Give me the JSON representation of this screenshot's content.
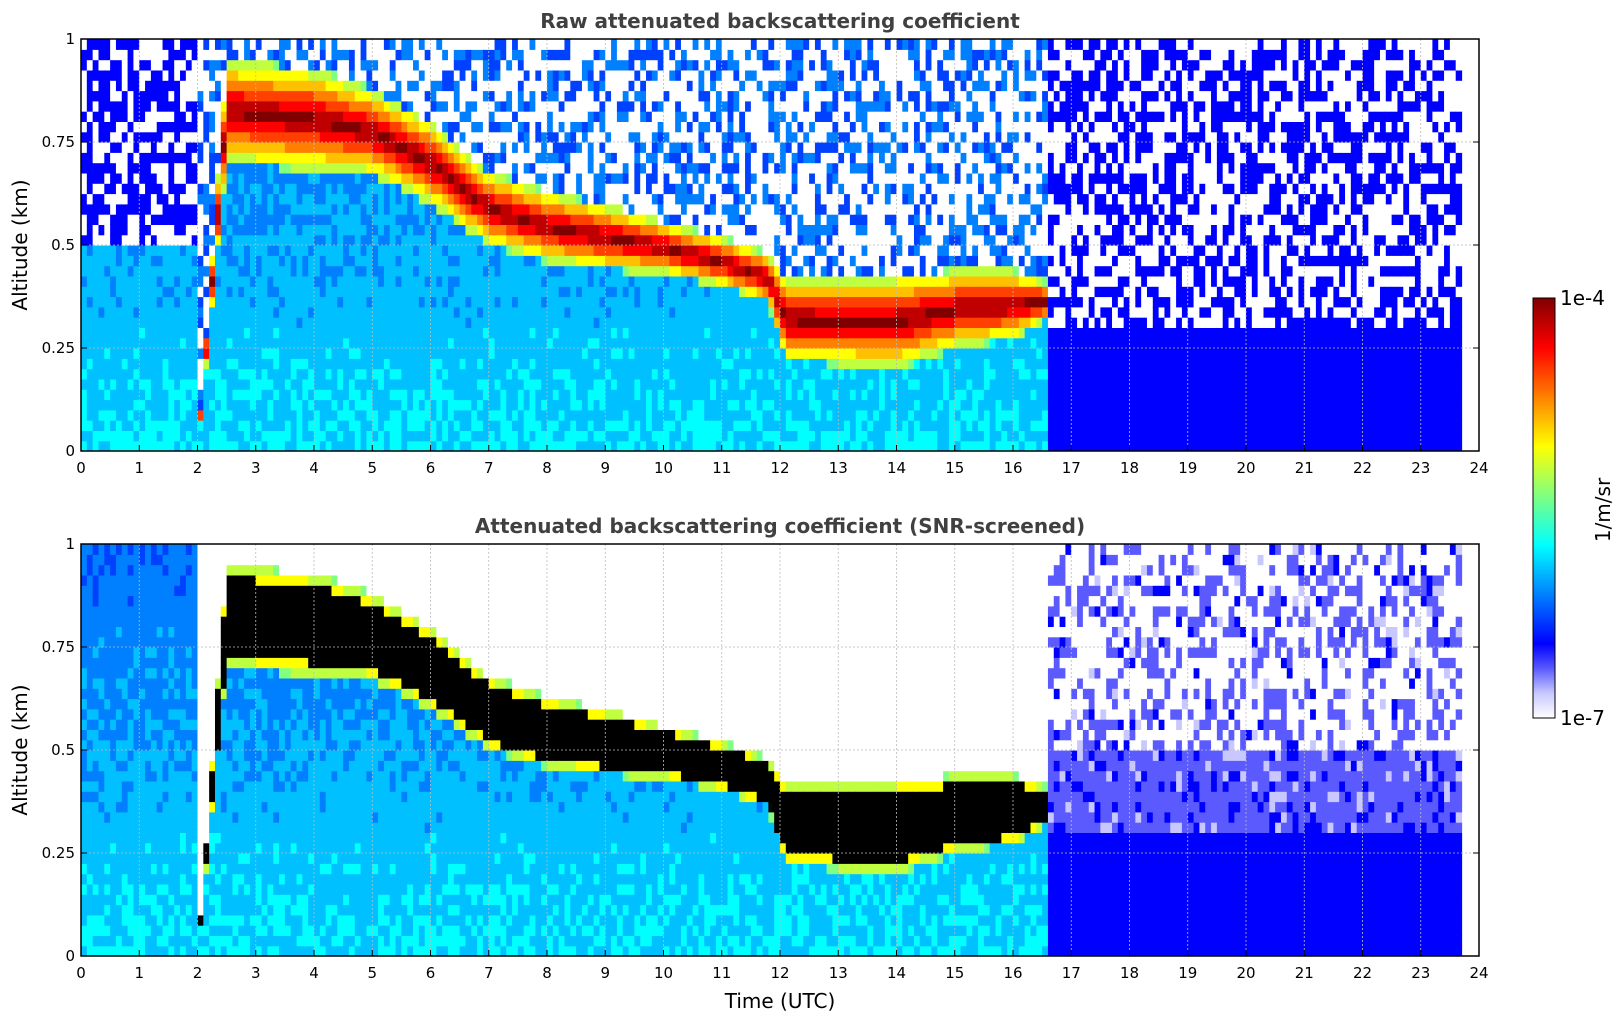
{
  "chart_data": [
    {
      "type": "heatmap",
      "title": "Raw attenuated backscattering coefficient",
      "xlabel": "",
      "ylabel": "Altitude (km)",
      "xlim": [
        0,
        24
      ],
      "ylim": [
        0,
        1
      ],
      "x_ticks": [
        "0",
        "1",
        "2",
        "3",
        "4",
        "5",
        "6",
        "7",
        "8",
        "9",
        "10",
        "11",
        "12",
        "13",
        "14",
        "15",
        "16",
        "17",
        "18",
        "19",
        "20",
        "21",
        "22",
        "23",
        "24"
      ],
      "y_ticks": [
        "0",
        "0.25",
        "0.5",
        "0.75",
        "1"
      ],
      "grid": true,
      "data_extent_hours": [
        0,
        23.65
      ],
      "layer": {
        "description_time_h": [
          0,
          2,
          2.5,
          4,
          5,
          6,
          7,
          8,
          9,
          10,
          11,
          11.8,
          12.1,
          13,
          14,
          15,
          16,
          16.6
        ],
        "top_km": [
          0,
          0,
          0.95,
          0.93,
          0.88,
          0.8,
          0.68,
          0.63,
          0.6,
          0.56,
          0.52,
          0.48,
          0.42,
          0.42,
          0.43,
          0.44,
          0.44,
          0.41
        ],
        "base_km": [
          0,
          0,
          0.7,
          0.68,
          0.67,
          0.6,
          0.5,
          0.46,
          0.44,
          0.43,
          0.4,
          0.36,
          0.22,
          0.21,
          0.2,
          0.25,
          0.27,
          0.32
        ]
      }
    },
    {
      "type": "heatmap",
      "title": "Attenuated backscattering coefficient (SNR-screened)",
      "xlabel": "Time (UTC)",
      "ylabel": "Altitude (km)",
      "xlim": [
        0,
        24
      ],
      "ylim": [
        0,
        1
      ],
      "x_ticks": [
        "0",
        "1",
        "2",
        "3",
        "4",
        "5",
        "6",
        "7",
        "8",
        "9",
        "10",
        "11",
        "12",
        "13",
        "14",
        "15",
        "16",
        "17",
        "18",
        "19",
        "20",
        "21",
        "22",
        "23",
        "24"
      ],
      "y_ticks": [
        "0",
        "0.25",
        "0.5",
        "0.75",
        "1"
      ],
      "grid": true,
      "data_extent_hours": [
        0,
        23.65
      ]
    }
  ],
  "colorbar": {
    "max_label": "1e-4",
    "min_label": "1e-7",
    "unit_label": "1/m/sr",
    "colormap": [
      "#ffffff",
      "#c8c8ff",
      "#5a5aff",
      "#0000ff",
      "#0040ff",
      "#0080ff",
      "#00c0ff",
      "#00ffff",
      "#40ffc0",
      "#80ff80",
      "#c0ff40",
      "#ffff00",
      "#ffc000",
      "#ff8000",
      "#ff4000",
      "#ff0000",
      "#c00000",
      "#800000"
    ]
  }
}
